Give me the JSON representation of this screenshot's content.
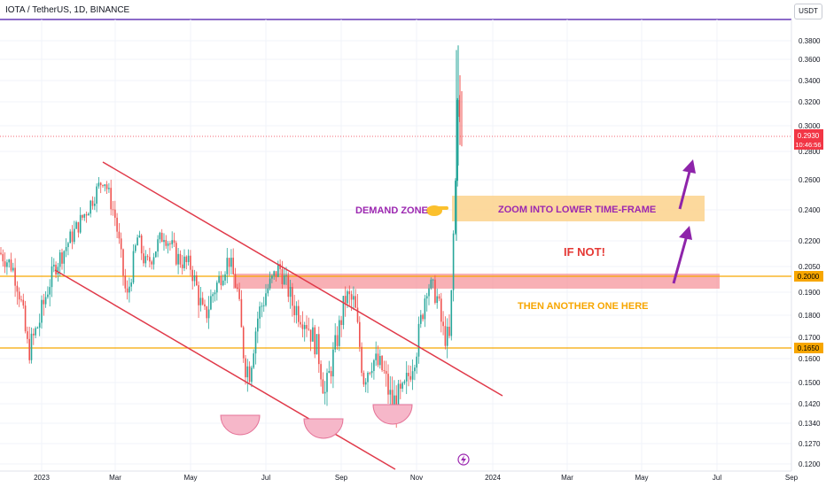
{
  "symbol": "IOTA / TetherUS, 1D, BINANCE",
  "currency_button": "USDT",
  "chart_data": {
    "type": "candlestick",
    "y_axis_ticks": [
      "0.3800",
      "0.3600",
      "0.3400",
      "0.3200",
      "0.3000",
      "0.2800",
      "0.2600",
      "0.2400",
      "0.2200",
      "0.2050",
      "0.1900",
      "0.1800",
      "0.1700",
      "0.1600",
      "0.1500",
      "0.1420",
      "0.1340",
      "0.1270",
      "0.1200"
    ],
    "x_axis_ticks": [
      "2023",
      "Mar",
      "May",
      "Jul",
      "Sep",
      "Nov",
      "2024",
      "Mar",
      "May",
      "Jul",
      "Sep"
    ],
    "price_labels": [
      {
        "value": "0.2930",
        "time": "10:46:56",
        "color": "#f23645"
      },
      {
        "value": "0.2000",
        "color": "#f7a600"
      },
      {
        "value": "0.1650",
        "color": "#f7a600"
      }
    ],
    "horizontal_levels": [
      0.2,
      0.165
    ],
    "candles": [],
    "annotations": {
      "demand_zone": "DEMAND ZONE",
      "zoom_box": "ZOOM INTO LOWER TIME-FRAME",
      "if_not": "IF NOT!",
      "another": "THEN ANOTHER ONE HERE"
    },
    "colors": {
      "up": "#26a69a",
      "down": "#ef5350",
      "channel": "#e03a4a",
      "level": "#f7a600",
      "zone_orange": "#fcd592",
      "zone_red": "#f5959c",
      "arrow": "#8e24aa",
      "purple_text": "#9c27b0",
      "orange_text": "#f7a600",
      "red_text": "#e53935"
    }
  }
}
